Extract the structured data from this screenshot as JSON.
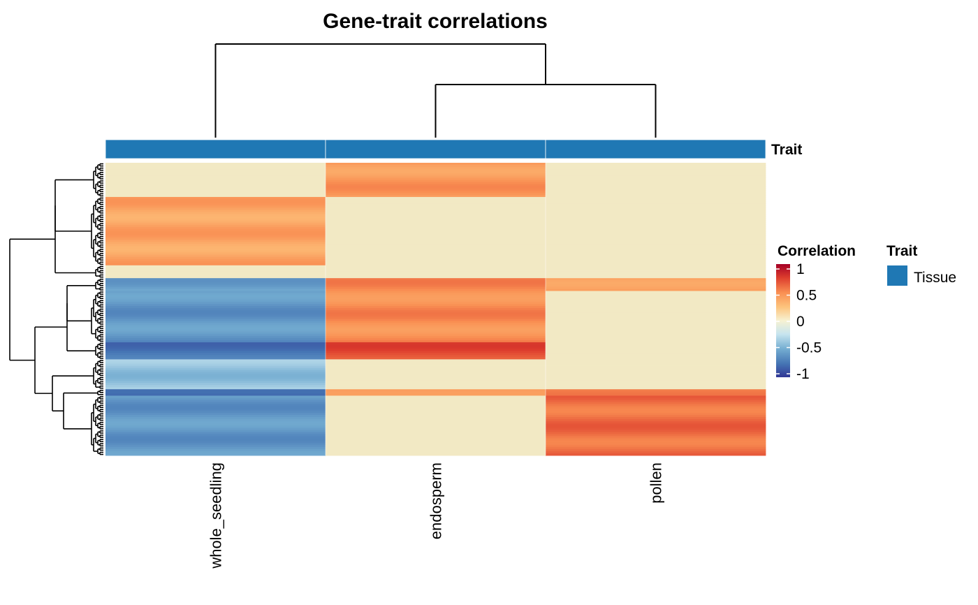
{
  "chart_data": {
    "type": "heatmap",
    "title": "Gene-trait correlations",
    "columns": [
      "whole_seedling",
      "endosperm",
      "pollen"
    ],
    "column_annotation": {
      "name": "Trait",
      "values": [
        "Tissue",
        "Tissue",
        "Tissue"
      ],
      "color": "#1f78b4"
    },
    "row_blocks": [
      {
        "rows": 16,
        "values": [
          0.0,
          0.45,
          0.0
        ]
      },
      {
        "rows": 32,
        "values": [
          0.4,
          0.0,
          0.0
        ]
      },
      {
        "rows": 6,
        "values": [
          0.0,
          0.0,
          0.0
        ]
      },
      {
        "rows": 6,
        "values": [
          -0.55,
          0.5,
          0.45
        ]
      },
      {
        "rows": 24,
        "values": [
          -0.6,
          0.5,
          0.0
        ]
      },
      {
        "rows": 8,
        "values": [
          -0.75,
          0.7,
          0.0
        ]
      },
      {
        "rows": 14,
        "values": [
          -0.4,
          0.0,
          0.0
        ]
      },
      {
        "rows": 3,
        "values": [
          -0.85,
          0.5,
          0.5
        ]
      },
      {
        "rows": 28,
        "values": [
          -0.6,
          0.0,
          0.6
        ]
      }
    ],
    "legend": {
      "correlation": {
        "title": "Correlation",
        "ticks": [
          "1",
          "0.5",
          "0",
          "-0.5",
          "-1"
        ],
        "range": [
          -1,
          1
        ],
        "palette": "RdYlBu (reversed)"
      },
      "trait": {
        "title": "Trait",
        "entries": [
          {
            "label": "Tissue",
            "color": "#1f78b4"
          }
        ]
      }
    },
    "column_dendrogram": true,
    "row_dendrogram": true
  },
  "colors": {
    "annotation": "#1f78b4",
    "neg1": "#313695",
    "neg05": "#74add1",
    "zero": "#f2e9c4",
    "pos05": "#f9a25e",
    "pos1": "#a50026"
  }
}
